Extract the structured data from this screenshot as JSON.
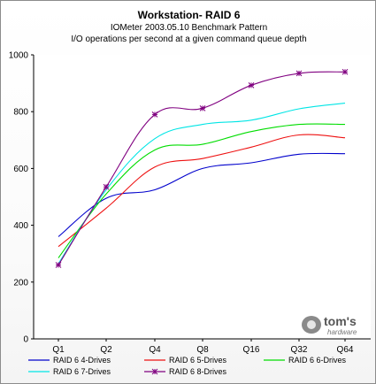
{
  "chart_data": {
    "type": "line",
    "title": "Workstation- RAID 6",
    "subtitle": "IOMeter 2003.05.10  Benchmark Pattern",
    "subtitle2": "I/O operations per second at a given command queue depth",
    "categories": [
      "Q1",
      "Q2",
      "Q4",
      "Q8",
      "Q16",
      "Q32",
      "Q64"
    ],
    "ylim": [
      0,
      1000
    ],
    "yticks": [
      0,
      200,
      400,
      600,
      800,
      1000
    ],
    "grid": false,
    "legend_position": "bottom",
    "series": [
      {
        "name": "RAID 6 4-Drives",
        "color": "#0000cc",
        "values": [
          360,
          495,
          525,
          600,
          620,
          650,
          652
        ]
      },
      {
        "name": "RAID 6 5-Drives",
        "color": "#ee1111",
        "values": [
          325,
          460,
          605,
          635,
          675,
          718,
          708
        ]
      },
      {
        "name": "RAID 6 6-Drives",
        "color": "#00dd00",
        "values": [
          285,
          510,
          665,
          685,
          730,
          755,
          755
        ]
      },
      {
        "name": "RAID 6 7-Drives",
        "color": "#00e5e5",
        "values": [
          265,
          525,
          705,
          755,
          770,
          810,
          830
        ]
      },
      {
        "name": "RAID 6 8-Drives",
        "color": "#800080",
        "marker": "star",
        "values": [
          260,
          535,
          790,
          812,
          893,
          935,
          940
        ]
      }
    ]
  },
  "logo": {
    "name": "tom's",
    "sub": "hardware"
  }
}
